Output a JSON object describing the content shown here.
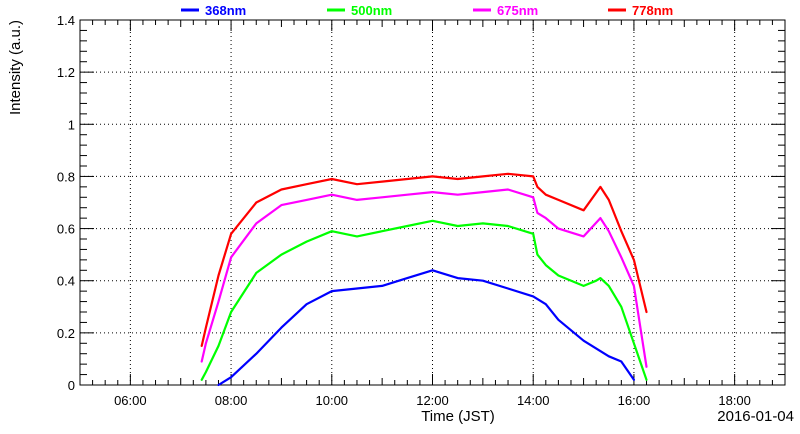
{
  "chart_data": {
    "type": "line",
    "title": "",
    "xlabel": "Time (JST)",
    "ylabel": "Intensity (a.u.)",
    "date_label": "2016-01-04",
    "xlim": [
      "05:00",
      "19:00"
    ],
    "ylim": [
      0,
      1.4
    ],
    "grid": true,
    "grid_style": "dotted",
    "legend_position": "top",
    "x_ticks": [
      "06:00",
      "08:00",
      "10:00",
      "12:00",
      "14:00",
      "16:00",
      "18:00"
    ],
    "y_ticks": [
      "0",
      "0.2",
      "0.4",
      "0.6",
      "0.8",
      "1",
      "1.2",
      "1.4"
    ],
    "series": [
      {
        "name": "368nm",
        "color": "#0000ff",
        "x": [
          "07:45",
          "08:00",
          "08:30",
          "09:00",
          "09:30",
          "10:00",
          "10:30",
          "11:00",
          "11:30",
          "12:00",
          "12:30",
          "13:00",
          "13:30",
          "14:00",
          "14:15",
          "14:30",
          "15:00",
          "15:30",
          "15:45",
          "16:00"
        ],
        "y": [
          0.0,
          0.03,
          0.12,
          0.22,
          0.31,
          0.36,
          0.37,
          0.38,
          0.41,
          0.44,
          0.41,
          0.4,
          0.37,
          0.34,
          0.31,
          0.25,
          0.17,
          0.11,
          0.09,
          0.02
        ]
      },
      {
        "name": "500nm",
        "color": "#00ff00",
        "x": [
          "07:25",
          "07:30",
          "07:45",
          "08:00",
          "08:30",
          "09:00",
          "09:30",
          "10:00",
          "10:30",
          "11:00",
          "11:30",
          "12:00",
          "12:30",
          "13:00",
          "13:30",
          "14:00",
          "14:05",
          "14:15",
          "14:30",
          "15:00",
          "15:15",
          "15:20",
          "15:30",
          "15:45",
          "16:00",
          "16:15"
        ],
        "y": [
          0.02,
          0.05,
          0.15,
          0.28,
          0.43,
          0.5,
          0.55,
          0.59,
          0.57,
          0.59,
          0.61,
          0.63,
          0.61,
          0.62,
          0.61,
          0.58,
          0.5,
          0.46,
          0.42,
          0.38,
          0.4,
          0.41,
          0.38,
          0.3,
          0.16,
          0.02
        ]
      },
      {
        "name": "675nm",
        "color": "#ff00ff",
        "x": [
          "07:25",
          "07:30",
          "07:45",
          "08:00",
          "08:30",
          "09:00",
          "09:30",
          "10:00",
          "10:30",
          "11:00",
          "11:30",
          "12:00",
          "12:30",
          "13:00",
          "13:30",
          "14:00",
          "14:05",
          "14:15",
          "14:30",
          "15:00",
          "15:20",
          "15:30",
          "15:45",
          "16:00",
          "16:15"
        ],
        "y": [
          0.09,
          0.16,
          0.32,
          0.49,
          0.62,
          0.69,
          0.71,
          0.73,
          0.71,
          0.72,
          0.73,
          0.74,
          0.73,
          0.74,
          0.75,
          0.72,
          0.66,
          0.64,
          0.6,
          0.57,
          0.64,
          0.59,
          0.49,
          0.38,
          0.07
        ]
      },
      {
        "name": "778nm",
        "color": "#ff0000",
        "x": [
          "07:25",
          "07:30",
          "07:45",
          "08:00",
          "08:30",
          "09:00",
          "09:30",
          "10:00",
          "10:30",
          "11:00",
          "11:30",
          "12:00",
          "12:30",
          "13:00",
          "13:30",
          "14:00",
          "14:05",
          "14:15",
          "14:30",
          "15:00",
          "15:20",
          "15:30",
          "15:45",
          "16:00",
          "16:15"
        ],
        "y": [
          0.15,
          0.22,
          0.42,
          0.58,
          0.7,
          0.75,
          0.77,
          0.79,
          0.77,
          0.78,
          0.79,
          0.8,
          0.79,
          0.8,
          0.81,
          0.8,
          0.76,
          0.73,
          0.71,
          0.67,
          0.76,
          0.71,
          0.59,
          0.48,
          0.28
        ]
      }
    ]
  }
}
